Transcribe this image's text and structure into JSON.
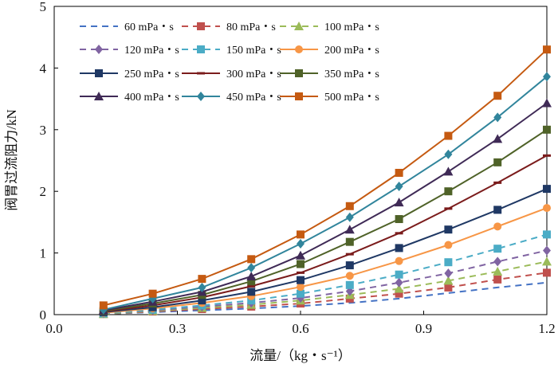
{
  "chart_data": {
    "type": "line",
    "title": "",
    "xlabel": "流量/（kg・s⁻¹）",
    "ylabel": "阀胃过流阻力/kN",
    "xlim": [
      0,
      1.2
    ],
    "ylim": [
      0,
      5
    ],
    "xticks": [
      "0.0",
      "0.3",
      "0.6",
      "0.9",
      "1.2"
    ],
    "yticks": [
      "0",
      "1",
      "2",
      "3",
      "4",
      "5"
    ],
    "x": [
      0.12,
      0.24,
      0.36,
      0.48,
      0.6,
      0.72,
      0.84,
      0.96,
      1.08,
      1.2
    ],
    "legend_position": "top-left",
    "series": [
      {
        "name": "60 mPa・s",
        "color": "#4472c4",
        "dashed": true,
        "marker": "none",
        "values": [
          0.01,
          0.04,
          0.07,
          0.1,
          0.14,
          0.19,
          0.26,
          0.35,
          0.44,
          0.52
        ]
      },
      {
        "name": "80 mPa・s",
        "color": "#c0504d",
        "dashed": true,
        "marker": "square",
        "values": [
          0.01,
          0.05,
          0.09,
          0.13,
          0.18,
          0.26,
          0.34,
          0.44,
          0.57,
          0.68
        ]
      },
      {
        "name": "100 mPa・s",
        "color": "#9bbb59",
        "dashed": true,
        "marker": "triangle",
        "values": [
          0.01,
          0.06,
          0.11,
          0.16,
          0.23,
          0.32,
          0.42,
          0.55,
          0.7,
          0.86
        ]
      },
      {
        "name": "120 mPa・s",
        "color": "#8064a2",
        "dashed": true,
        "marker": "diamond",
        "values": [
          0.02,
          0.07,
          0.13,
          0.19,
          0.27,
          0.38,
          0.52,
          0.67,
          0.86,
          1.04
        ]
      },
      {
        "name": "150 mPa・s",
        "color": "#4bacc6",
        "dashed": true,
        "marker": "square",
        "values": [
          0.02,
          0.08,
          0.15,
          0.23,
          0.34,
          0.48,
          0.65,
          0.85,
          1.07,
          1.3
        ]
      },
      {
        "name": "200 mPa・s",
        "color": "#f79646",
        "dashed": false,
        "marker": "circle",
        "values": [
          0.03,
          0.1,
          0.19,
          0.3,
          0.45,
          0.63,
          0.87,
          1.13,
          1.43,
          1.73
        ]
      },
      {
        "name": "250 mPa・s",
        "color": "#1f3864",
        "dashed": false,
        "marker": "square",
        "values": [
          0.04,
          0.12,
          0.23,
          0.37,
          0.56,
          0.8,
          1.08,
          1.38,
          1.7,
          2.04
        ]
      },
      {
        "name": "300 mPa・s",
        "color": "#7b1c1c",
        "dashed": false,
        "marker": "dash",
        "values": [
          0.05,
          0.15,
          0.28,
          0.46,
          0.68,
          0.98,
          1.32,
          1.72,
          2.14,
          2.58
        ]
      },
      {
        "name": "350 mPa・s",
        "color": "#4f6228",
        "dashed": false,
        "marker": "square",
        "values": [
          0.06,
          0.18,
          0.32,
          0.54,
          0.82,
          1.18,
          1.55,
          2.0,
          2.47,
          3.0
        ]
      },
      {
        "name": "400 mPa・s",
        "color": "#3f2a56",
        "dashed": false,
        "marker": "triangle",
        "values": [
          0.07,
          0.21,
          0.37,
          0.62,
          0.96,
          1.38,
          1.82,
          2.32,
          2.85,
          3.43
        ]
      },
      {
        "name": "450 mPa・s",
        "color": "#31859c",
        "dashed": false,
        "marker": "diamond",
        "values": [
          0.08,
          0.26,
          0.44,
          0.76,
          1.15,
          1.58,
          2.08,
          2.6,
          3.2,
          3.86
        ]
      },
      {
        "name": "500 mPa・s",
        "color": "#c55a11",
        "dashed": false,
        "marker": "square",
        "values": [
          0.15,
          0.34,
          0.58,
          0.9,
          1.3,
          1.76,
          2.3,
          2.9,
          3.55,
          4.3
        ]
      }
    ]
  }
}
